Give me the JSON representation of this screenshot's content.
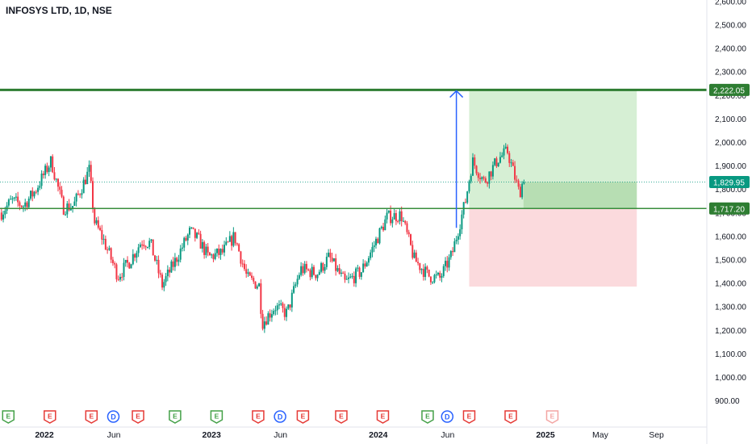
{
  "header": {
    "symbol_label": "INFOSYS LTD, 1D, NSE"
  },
  "colors": {
    "up": "#089981",
    "down": "#f23645",
    "target_line": "#2e7d32",
    "entry_line": "#388e3c",
    "profit_zone": "#d6efd4",
    "profit_zone_dark": "#b7deb3",
    "loss_zone": "#fbdadd",
    "arrow": "#2962ff",
    "axis_text": "#131722",
    "grid": "#e0e3eb",
    "event_e": "#e53935",
    "event_d": "#2962ff",
    "event_earn_green": "#43a047"
  },
  "chart_data": {
    "type": "candlestick",
    "y_axis": {
      "position": "right",
      "ylim": [
        880,
        2620
      ],
      "ticks": [
        900,
        1000,
        1100,
        1200,
        1300,
        1400,
        1500,
        1600,
        1700,
        1800,
        1900,
        2000,
        2100,
        2200,
        2300,
        2400,
        2500,
        2600
      ],
      "tick_labels": [
        "900.00",
        "1,000.00",
        "1,100.00",
        "1,200.00",
        "1,300.00",
        "1,400.00",
        "1,500.00",
        "1,600.00",
        "1,700.00",
        "1,800.00",
        "1,900.00",
        "2,000.00",
        "2,100.00",
        "2,200.00",
        "2,300.00",
        "2,400.00",
        "2,500.00",
        "2,600.00"
      ]
    },
    "x_axis": {
      "ticks": [
        "2021-12-31",
        "2022-06-01",
        "2023-01-01",
        "2023-06-01",
        "2024-01-01",
        "2024-06-01",
        "2025-01-01",
        "2025-05-01",
        "2025-09-01"
      ],
      "tick_labels": [
        "2022",
        "Jun",
        "2023",
        "Jun",
        "2024",
        "Jun",
        "2025",
        "May",
        "Sep"
      ],
      "bold_labels": [
        "2022",
        "2023",
        "2024",
        "2025"
      ]
    },
    "price_path": [
      [
        "2021-09-28",
        1700
      ],
      [
        "2021-10-20",
        1750
      ],
      [
        "2021-11-15",
        1730
      ],
      [
        "2021-12-10",
        1790
      ],
      [
        "2022-01-15",
        1920
      ],
      [
        "2022-02-10",
        1720
      ],
      [
        "2022-03-05",
        1730
      ],
      [
        "2022-04-08",
        1880
      ],
      [
        "2022-04-20",
        1660
      ],
      [
        "2022-05-10",
        1580
      ],
      [
        "2022-06-10",
        1430
      ],
      [
        "2022-07-05",
        1490
      ],
      [
        "2022-08-01",
        1580
      ],
      [
        "2022-08-20",
        1570
      ],
      [
        "2022-09-15",
        1390
      ],
      [
        "2022-10-15",
        1500
      ],
      [
        "2022-11-15",
        1620
      ],
      [
        "2022-12-05",
        1580
      ],
      [
        "2022-12-25",
        1510
      ],
      [
        "2023-01-25",
        1530
      ],
      [
        "2023-02-20",
        1600
      ],
      [
        "2023-03-20",
        1420
      ],
      [
        "2023-04-15",
        1390
      ],
      [
        "2023-04-22",
        1230
      ],
      [
        "2023-05-20",
        1300
      ],
      [
        "2023-06-15",
        1270
      ],
      [
        "2023-07-15",
        1460
      ],
      [
        "2023-08-20",
        1440
      ],
      [
        "2023-09-15",
        1510
      ],
      [
        "2023-10-20",
        1400
      ],
      [
        "2023-11-25",
        1450
      ],
      [
        "2023-12-20",
        1550
      ],
      [
        "2024-01-20",
        1680
      ],
      [
        "2024-02-20",
        1690
      ],
      [
        "2024-03-20",
        1500
      ],
      [
        "2024-04-20",
        1430
      ],
      [
        "2024-05-15",
        1420
      ],
      [
        "2024-06-10",
        1520
      ],
      [
        "2024-07-10",
        1750
      ],
      [
        "2024-07-25",
        1920
      ],
      [
        "2024-08-20",
        1830
      ],
      [
        "2024-09-20",
        1930
      ],
      [
        "2024-10-10",
        1960
      ],
      [
        "2024-11-05",
        1780
      ],
      [
        "2024-11-15",
        1850
      ]
    ],
    "candle_interval_days": 4,
    "last_price": 1829.95,
    "last_price_label": "1,829.95",
    "horizontal_lines": [
      {
        "name": "target",
        "price": 2222.05,
        "label": "2,222.05"
      },
      {
        "name": "entry",
        "price": 1717.2,
        "label": "1,717.20"
      }
    ],
    "position_tool": {
      "start": "2024-07-18",
      "end": "2025-07-20",
      "entry": 1717.2,
      "target": 2222.05,
      "stop": 1385.0,
      "current_price": 1829.95,
      "current_from": "2024-11-14"
    },
    "measure_arrow": {
      "date": "2024-06-20",
      "from_price": 1635,
      "to_price": 2218
    },
    "events": [
      {
        "date": "2021-10-13",
        "kind": "E",
        "style": "green"
      },
      {
        "date": "2022-01-12",
        "kind": "E",
        "style": "red"
      },
      {
        "date": "2022-04-13",
        "kind": "E",
        "style": "red"
      },
      {
        "date": "2022-05-31",
        "kind": "D",
        "style": "blue"
      },
      {
        "date": "2022-07-24",
        "kind": "E",
        "style": "red"
      },
      {
        "date": "2022-10-13",
        "kind": "E",
        "style": "green"
      },
      {
        "date": "2023-01-12",
        "kind": "E",
        "style": "green"
      },
      {
        "date": "2023-04-13",
        "kind": "E",
        "style": "red"
      },
      {
        "date": "2023-05-31",
        "kind": "D",
        "style": "blue"
      },
      {
        "date": "2023-07-20",
        "kind": "E",
        "style": "red"
      },
      {
        "date": "2023-10-12",
        "kind": "E",
        "style": "red"
      },
      {
        "date": "2024-01-11",
        "kind": "E",
        "style": "red"
      },
      {
        "date": "2024-04-18",
        "kind": "E",
        "style": "green"
      },
      {
        "date": "2024-05-31",
        "kind": "D",
        "style": "blue"
      },
      {
        "date": "2024-07-18",
        "kind": "E",
        "style": "red"
      },
      {
        "date": "2024-10-17",
        "kind": "E",
        "style": "red"
      },
      {
        "date": "2025-01-16",
        "kind": "E",
        "style": "faded"
      }
    ]
  }
}
